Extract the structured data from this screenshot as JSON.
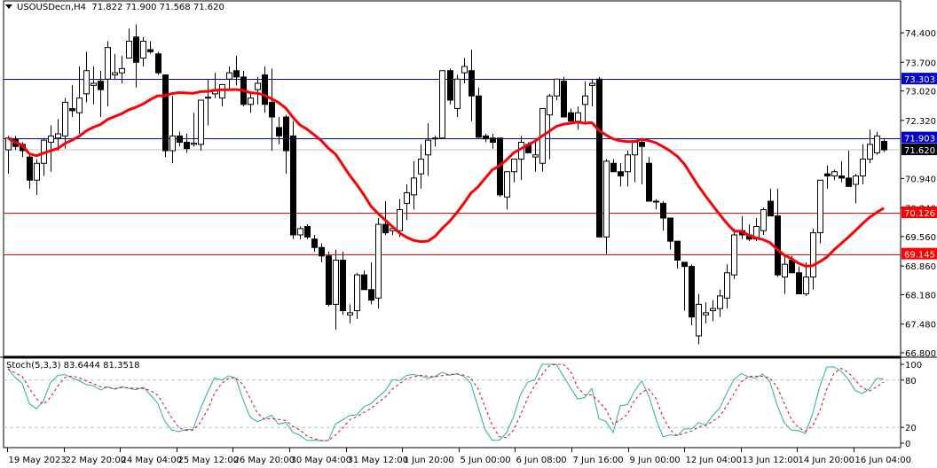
{
  "header": {
    "symbol": "USOUSDecn,H4",
    "ohlc_text": "71.822 71.900 71.568 71.620"
  },
  "indicator": {
    "label": "Stoch(5,3,3) 83.6444 81.3518"
  },
  "colors": {
    "resistance_line": "#0000CC",
    "support_line": "#FF0000",
    "moving_average": "#FF0000",
    "stoch_main": "#20B2AA",
    "stoch_signal": "#FF0000",
    "bid_line": "#C0C0C0",
    "bull_body": "#FFFFFF",
    "bear_body": "#000000"
  },
  "chart_data": [
    {
      "type": "candlestick",
      "title": "USOUSDecn,H4",
      "ylim": [
        66.8,
        74.75
      ],
      "y_ticks": [
        "74.400",
        "73.700",
        "73.020",
        "72.320",
        "70.940",
        "70.240",
        "69.560",
        "68.860",
        "68.180",
        "67.480",
        "66.800"
      ],
      "x_tick_labels": [
        "19 May 2023",
        "22 May 20:00",
        "24 May 04:00",
        "25 May 12:00",
        "26 May 20:00",
        "30 May 04:00",
        "31 May 12:00",
        "1 Jun 20:00",
        "5 Jun 00:00",
        "6 Jun 08:00",
        "7 Jun 16:00",
        "9 Jun 00:00",
        "12 Jun 04:00",
        "13 Jun 12:00",
        "14 Jun 20:00",
        "16 Jun 04:00"
      ],
      "horizontal_levels": [
        {
          "value": 73.303,
          "label": "73.303",
          "color": "#0000CC"
        },
        {
          "value": 71.903,
          "label": "71.903",
          "color": "#0000CC"
        },
        {
          "value": 70.126,
          "label": "70.126",
          "color": "#FF0000"
        },
        {
          "value": 69.145,
          "label": "69.145",
          "color": "#FF0000"
        }
      ],
      "current_price": {
        "value": 71.62,
        "label": "71.620"
      },
      "last_bar": {
        "open": 71.822,
        "high": 71.9,
        "low": 71.568,
        "close": 71.62
      },
      "candles_ohlc": [
        [
          71.62,
          71.95,
          71.05,
          71.9
        ],
        [
          71.88,
          71.95,
          71.62,
          71.7
        ],
        [
          71.75,
          71.8,
          71.45,
          71.6
        ],
        [
          71.45,
          71.5,
          70.7,
          70.9
        ],
        [
          70.9,
          71.4,
          70.55,
          71.3
        ],
        [
          71.3,
          71.9,
          71.0,
          71.85
        ],
        [
          71.8,
          72.2,
          71.1,
          71.95
        ],
        [
          71.9,
          72.35,
          71.6,
          72.0
        ],
        [
          71.95,
          72.85,
          71.65,
          72.75
        ],
        [
          72.6,
          73.15,
          72.4,
          72.55
        ],
        [
          72.5,
          73.6,
          72.0,
          72.85
        ],
        [
          72.95,
          73.95,
          72.75,
          73.5
        ],
        [
          73.15,
          73.6,
          72.7,
          73.2
        ],
        [
          73.25,
          73.5,
          72.4,
          73.05
        ],
        [
          73.3,
          74.2,
          72.65,
          74.05
        ],
        [
          73.4,
          73.9,
          73.3,
          73.45
        ],
        [
          73.45,
          73.85,
          73.2,
          73.55
        ],
        [
          73.8,
          74.5,
          73.8,
          74.2
        ],
        [
          74.3,
          74.6,
          73.1,
          73.7
        ],
        [
          73.8,
          74.3,
          73.6,
          74.2
        ],
        [
          74.0,
          74.2,
          73.9,
          73.95
        ],
        [
          73.9,
          73.95,
          73.4,
          73.45
        ],
        [
          73.4,
          73.4,
          71.45,
          71.6
        ],
        [
          71.6,
          72.9,
          71.3,
          71.95
        ],
        [
          71.95,
          72.05,
          71.7,
          71.8
        ],
        [
          71.8,
          72.0,
          71.55,
          71.65
        ],
        [
          71.75,
          72.5,
          71.7,
          71.78
        ],
        [
          71.75,
          72.75,
          71.6,
          72.8
        ],
        [
          72.85,
          73.3,
          72.2,
          72.87
        ],
        [
          72.95,
          73.45,
          72.85,
          73.05
        ],
        [
          72.85,
          73.15,
          72.65,
          73.17
        ],
        [
          73.3,
          73.6,
          73.05,
          73.45
        ],
        [
          73.5,
          73.85,
          73.15,
          73.35
        ],
        [
          73.35,
          73.5,
          72.65,
          72.7
        ],
        [
          72.7,
          73.0,
          72.5,
          72.85
        ],
        [
          73.05,
          73.35,
          72.7,
          73.2
        ],
        [
          73.4,
          73.6,
          72.5,
          72.7
        ],
        [
          72.75,
          73.55,
          71.6,
          72.4
        ],
        [
          72.15,
          72.4,
          71.75,
          71.95
        ],
        [
          72.4,
          72.45,
          71.05,
          71.6
        ],
        [
          71.95,
          72.3,
          69.5,
          69.6
        ],
        [
          69.6,
          69.8,
          69.5,
          69.75
        ],
        [
          69.8,
          69.85,
          69.5,
          69.55
        ],
        [
          69.5,
          69.6,
          69.2,
          69.3
        ],
        [
          69.3,
          69.4,
          68.95,
          69.1
        ],
        [
          69.1,
          69.2,
          67.9,
          67.95
        ],
        [
          67.95,
          69.25,
          67.35,
          69.0
        ],
        [
          69.0,
          69.2,
          67.7,
          67.8
        ],
        [
          67.7,
          67.95,
          67.5,
          67.75
        ],
        [
          67.8,
          68.7,
          67.6,
          68.65
        ],
        [
          68.65,
          68.75,
          68.3,
          68.3
        ],
        [
          68.3,
          68.95,
          67.95,
          68.05
        ],
        [
          68.1,
          70.0,
          67.85,
          69.85
        ],
        [
          69.85,
          70.4,
          69.6,
          69.65
        ],
        [
          69.7,
          69.8,
          69.6,
          69.75
        ],
        [
          69.7,
          70.45,
          69.55,
          70.2
        ],
        [
          70.35,
          70.8,
          69.95,
          70.6
        ],
        [
          70.55,
          71.35,
          70.2,
          70.95
        ],
        [
          71.05,
          71.75,
          70.7,
          71.4
        ],
        [
          71.5,
          72.25,
          71.0,
          71.85
        ],
        [
          71.9,
          71.95,
          71.7,
          71.9
        ],
        [
          71.9,
          73.5,
          71.9,
          73.5
        ],
        [
          73.5,
          73.55,
          72.7,
          72.8
        ],
        [
          72.6,
          73.4,
          72.4,
          73.3
        ],
        [
          73.45,
          73.8,
          73.2,
          73.6
        ],
        [
          73.5,
          74.0,
          72.3,
          72.9
        ],
        [
          72.9,
          73.1,
          71.9,
          71.92
        ],
        [
          71.95,
          72.0,
          71.8,
          71.88
        ],
        [
          71.9,
          72.0,
          71.65,
          71.8
        ],
        [
          71.9,
          71.9,
          70.5,
          70.55
        ],
        [
          70.5,
          70.7,
          70.2,
          71.1
        ],
        [
          71.1,
          71.35,
          70.85,
          71.4
        ],
        [
          71.4,
          71.95,
          70.9,
          71.8
        ],
        [
          71.75,
          71.8,
          71.6,
          71.55
        ],
        [
          71.45,
          71.8,
          71.1,
          71.5
        ],
        [
          71.3,
          71.95,
          71.1,
          72.6
        ],
        [
          72.45,
          72.95,
          71.4,
          72.9
        ],
        [
          72.9,
          73.3,
          72.8,
          73.3
        ],
        [
          73.25,
          73.35,
          72.45,
          72.4
        ],
        [
          72.5,
          72.6,
          72.3,
          72.3
        ],
        [
          72.3,
          72.65,
          72.1,
          72.5
        ],
        [
          72.7,
          73.25,
          72.25,
          72.9
        ],
        [
          73.15,
          73.3,
          72.65,
          73.2
        ],
        [
          73.3,
          73.35,
          70.95,
          69.55
        ],
        [
          69.55,
          71.4,
          69.15,
          71.35
        ],
        [
          71.3,
          71.4,
          71.1,
          71.1
        ],
        [
          71.1,
          71.3,
          70.75,
          71.0
        ],
        [
          71.1,
          71.6,
          70.75,
          71.5
        ],
        [
          71.5,
          71.85,
          70.85,
          71.8
        ],
        [
          71.8,
          71.9,
          70.8,
          71.7
        ],
        [
          71.3,
          71.45,
          70.4,
          70.4
        ],
        [
          70.4,
          70.45,
          70.2,
          70.38
        ],
        [
          70.35,
          70.4,
          69.7,
          70.0
        ],
        [
          70.0,
          70.0,
          69.25,
          69.45
        ],
        [
          69.45,
          69.45,
          68.8,
          69.0
        ],
        [
          68.95,
          68.95,
          67.8,
          68.85
        ],
        [
          68.85,
          68.9,
          67.45,
          67.65
        ],
        [
          67.2,
          68.2,
          67.0,
          67.95
        ],
        [
          67.7,
          68.0,
          67.5,
          67.75
        ],
        [
          67.8,
          68.05,
          67.55,
          67.85
        ],
        [
          67.85,
          68.3,
          67.65,
          68.15
        ],
        [
          68.1,
          68.9,
          67.85,
          68.7
        ],
        [
          68.65,
          69.75,
          68.55,
          69.6
        ],
        [
          69.7,
          70.05,
          69.5,
          69.6
        ],
        [
          69.6,
          69.85,
          69.45,
          69.5
        ],
        [
          69.5,
          70.0,
          69.45,
          69.8
        ],
        [
          69.7,
          70.25,
          69.6,
          70.2
        ],
        [
          70.4,
          70.7,
          70.15,
          70.05
        ],
        [
          70.05,
          70.7,
          68.6,
          68.65
        ],
        [
          68.6,
          69.1,
          68.2,
          68.9
        ],
        [
          69.0,
          69.1,
          68.8,
          68.7
        ],
        [
          68.7,
          68.85,
          68.2,
          68.2
        ],
        [
          68.2,
          68.95,
          68.15,
          68.6
        ],
        [
          68.6,
          69.75,
          68.3,
          69.65
        ],
        [
          69.65,
          70.8,
          69.4,
          70.9
        ],
        [
          71.05,
          71.25,
          70.7,
          71.0
        ],
        [
          71.0,
          71.15,
          70.9,
          71.1
        ],
        [
          71.0,
          71.35,
          70.85,
          70.95
        ],
        [
          70.95,
          71.6,
          70.8,
          70.75
        ],
        [
          70.8,
          71.05,
          70.35,
          71.0
        ],
        [
          71.0,
          71.75,
          70.8,
          71.4
        ],
        [
          71.4,
          72.1,
          71.3,
          71.75
        ],
        [
          71.55,
          72.05,
          71.5,
          71.95
        ],
        [
          71.822,
          71.9,
          71.568,
          71.62
        ]
      ],
      "moving_average": {
        "color": "#FF0000",
        "description": "smoothed red moving average line"
      }
    },
    {
      "type": "line",
      "title": "Stoch(5,3,3)",
      "ylim": [
        0,
        100
      ],
      "y_ticks": [
        "100",
        "80",
        "20",
        "0"
      ],
      "levels": [
        80,
        20
      ],
      "series": [
        {
          "name": "%K",
          "value": 83.6444,
          "color": "#20B2AA",
          "style": "solid"
        },
        {
          "name": "%D",
          "value": 81.3518,
          "color": "#FF0000",
          "style": "dotted"
        }
      ]
    }
  ]
}
